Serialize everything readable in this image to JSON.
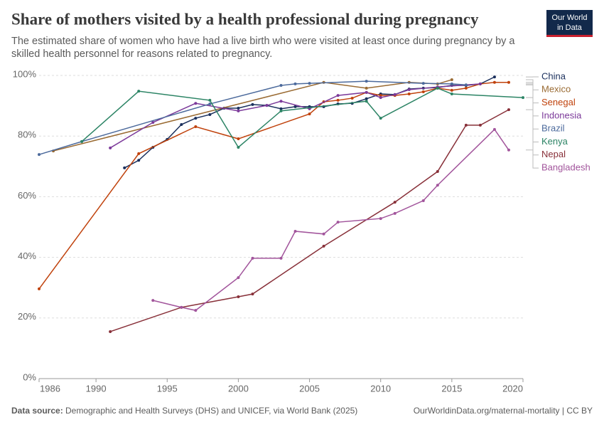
{
  "chart_data": {
    "type": "line",
    "title": "Share of mothers visited by a health professional during pregnancy",
    "subtitle": [
      "The estimated share of women who have had a live birth who were visited at least once during pregnancy by a",
      "skilled health personnel for reasons related to pregnancy."
    ],
    "logo": [
      "Our World",
      "in Data"
    ],
    "source_label": "Data source:",
    "source": "Demographic and Health Surveys (DHS) and UNICEF, via World Bank (2025)",
    "credit": "OurWorldinData.org/maternal-mortality | CC BY",
    "xlim": [
      1986,
      2020
    ],
    "xticks": [
      1986,
      1990,
      1995,
      2000,
      2005,
      2010,
      2015,
      2020
    ],
    "ylim": [
      0,
      100
    ],
    "yticks": [
      {
        "value": 0,
        "label": "0%"
      },
      {
        "value": 20,
        "label": "20%"
      },
      {
        "value": 40,
        "label": "40%"
      },
      {
        "value": 60,
        "label": "60%"
      },
      {
        "value": 80,
        "label": "80%"
      },
      {
        "value": 100,
        "label": "100%"
      }
    ],
    "grid": true,
    "series": [
      {
        "name": "China",
        "color": "#1a2f5c",
        "x": [
          1992,
          1993,
          1994,
          1995,
          1996,
          1997,
          1998,
          1999,
          2000,
          2001,
          2002,
          2003,
          2004,
          2005,
          2006,
          2007,
          2008,
          2009,
          2010,
          2011,
          2012,
          2013,
          2014,
          2015,
          2016,
          2017,
          2018
        ],
        "values": [
          69.5,
          72,
          76.3,
          78.9,
          83.8,
          85.9,
          87.1,
          89.2,
          89.2,
          90.4,
          90.1,
          89,
          89.7,
          89.7,
          89.7,
          90.6,
          90.8,
          92.3,
          93.9,
          93.7,
          95.5,
          95.8,
          96,
          96.7,
          96.7,
          97.2,
          99.5
        ]
      },
      {
        "name": "Mexico",
        "color": "#9a6b33",
        "x": [
          1987,
          2006,
          2009,
          2012,
          2014,
          2015
        ],
        "values": [
          75.1,
          97.7,
          95.8,
          97.7,
          97.2,
          98.6
        ]
      },
      {
        "name": "Senegal",
        "color": "#c0420c",
        "x": [
          1986,
          1993,
          1997,
          2000,
          2005,
          2006,
          2007,
          2008,
          2009,
          2010,
          2011,
          2012,
          2013,
          2014,
          2015,
          2016,
          2017,
          2018,
          2019
        ],
        "values": [
          29.6,
          74.2,
          83.1,
          79.1,
          87.3,
          91.3,
          91.8,
          92.5,
          94.4,
          93.4,
          93.4,
          93.9,
          94.6,
          95.8,
          95.1,
          95.8,
          97.2,
          97.7,
          97.7
        ]
      },
      {
        "name": "Indonesia",
        "color": "#7c3a9a",
        "x": [
          1991,
          1994,
          1997,
          2000,
          2002,
          2003,
          2005,
          2007,
          2009,
          2010,
          2011,
          2012,
          2014,
          2017
        ],
        "values": [
          76.1,
          84.5,
          90.8,
          88.3,
          90.1,
          91.5,
          89,
          93.4,
          94.4,
          92.7,
          93.7,
          95.3,
          96.2,
          97.2
        ]
      },
      {
        "name": "Brazil",
        "color": "#4c6a9c",
        "x": [
          1986,
          1989,
          1998,
          2003,
          2004,
          2005,
          2009,
          2013,
          2015,
          2016
        ],
        "values": [
          73.9,
          78.2,
          90.6,
          96.7,
          97.2,
          97.4,
          98.1,
          97.4,
          97.2,
          96.9
        ]
      },
      {
        "name": "Kenya",
        "color": "#2c8465",
        "x": [
          1989,
          1993,
          1998,
          2000,
          2003,
          2009,
          2010,
          2014,
          2015,
          2020
        ],
        "values": [
          78.2,
          94.8,
          91.8,
          76.3,
          88.3,
          91.5,
          85.9,
          95.8,
          93.9,
          92.7
        ]
      },
      {
        "name": "Nepal",
        "color": "#883039",
        "x": [
          1991,
          1996,
          2000,
          2001,
          2006,
          2011,
          2014,
          2016,
          2017,
          2019
        ],
        "values": [
          15.5,
          23.5,
          27,
          27.9,
          43.7,
          58.2,
          68.3,
          83.6,
          83.6,
          88.7
        ]
      },
      {
        "name": "Bangladesh",
        "color": "#a2559c",
        "x": [
          1994,
          1996,
          1997,
          2000,
          2001,
          2003,
          2004,
          2006,
          2007,
          2010,
          2011,
          2013,
          2014,
          2018,
          2019
        ],
        "values": [
          25.8,
          23.5,
          22.5,
          33.3,
          39.7,
          39.7,
          48.6,
          47.7,
          51.6,
          52.8,
          54.5,
          58.7,
          63.8,
          82.2,
          75.4
        ]
      }
    ]
  }
}
